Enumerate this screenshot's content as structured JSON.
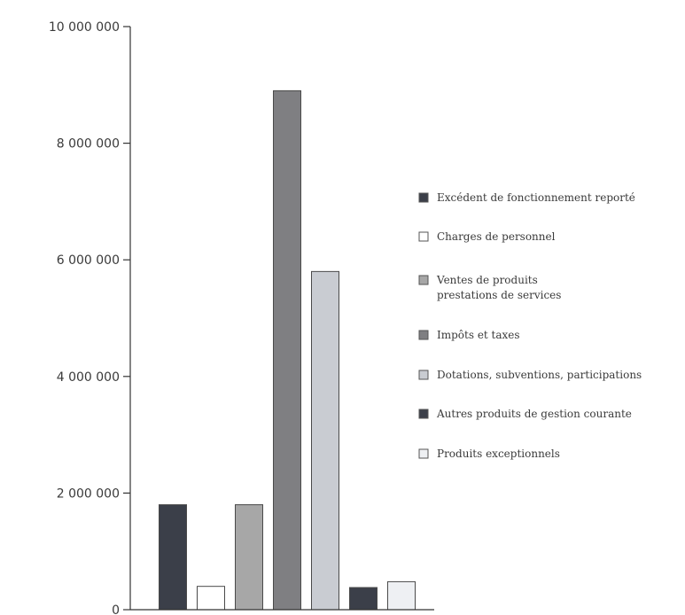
{
  "chart_data": {
    "type": "bar",
    "categories": [
      "Excédent de fonctionnement reporté",
      "Charges de personnel",
      "Ventes de produits prestations de services",
      "Impôts et taxes",
      "Dotations, subventions, participations",
      "Autres produits de gestion courante",
      "Produits exceptionnels"
    ],
    "values": [
      1800000,
      400000,
      1800000,
      8900000,
      5800000,
      380000,
      480000
    ],
    "ylim": [
      0,
      10000000
    ],
    "yticks": [
      0,
      2000000,
      4000000,
      6000000,
      8000000,
      10000000
    ],
    "ytick_labels": [
      "0",
      "2 000 000",
      "4 000 000",
      "6 000 000",
      "8 000 000",
      "10 000 000"
    ],
    "legend": {
      "placement": "right",
      "entries": [
        {
          "lines": [
            "Excédent de fonctionnement reporté"
          ],
          "color": "#3b3f49"
        },
        {
          "lines": [
            "Charges de personnel"
          ],
          "color": "#ffffff"
        },
        {
          "lines": [
            "Ventes de produits",
            "prestations de services"
          ],
          "color": "#a7a7a7"
        },
        {
          "lines": [
            "Impôts et taxes"
          ],
          "color": "#7f7f82"
        },
        {
          "lines": [
            "Dotations, subventions, participations"
          ],
          "color": "#c9ccd2"
        },
        {
          "lines": [
            "Autres produits de gestion courante"
          ],
          "color": "#3b3f49"
        },
        {
          "lines": [
            "Produits exceptionnels"
          ],
          "color": "#eef0f3"
        }
      ]
    },
    "bar_colors": [
      "#3b3f49",
      "#ffffff",
      "#a7a7a7",
      "#7f7f82",
      "#c9ccd2",
      "#3b3f49",
      "#eef0f3"
    ],
    "grid": false,
    "title": "",
    "xlabel": "",
    "ylabel": ""
  }
}
